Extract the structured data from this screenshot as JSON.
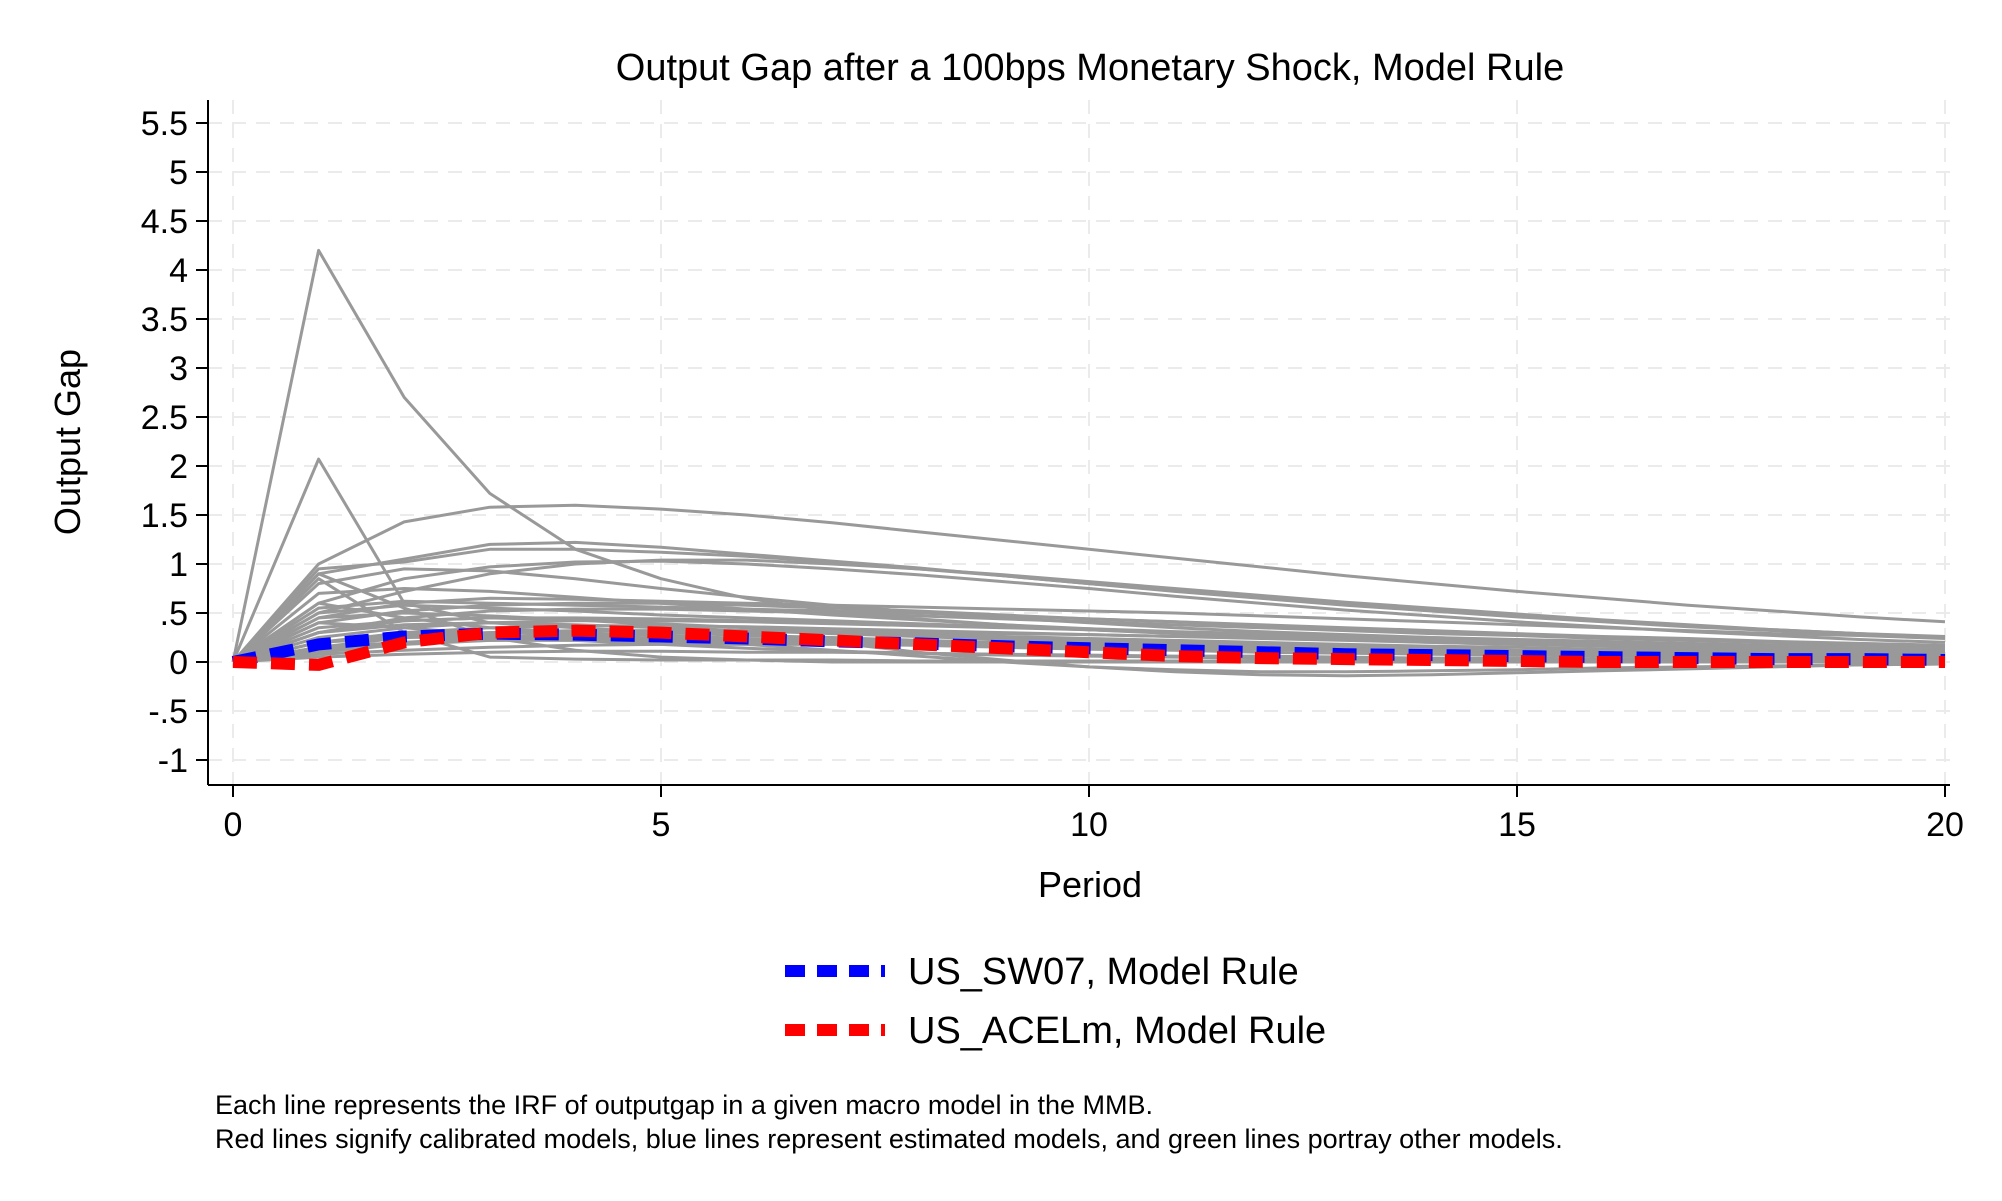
{
  "chart_data": {
    "type": "line",
    "title": "Output Gap after a 100bps Monetary Shock, Model Rule",
    "xlabel": "Period",
    "ylabel": "Output Gap",
    "xlim": [
      0,
      20
    ],
    "ylim": [
      -1,
      5.5
    ],
    "x_ticks": [
      0,
      5,
      10,
      15,
      20
    ],
    "x_tick_labels": [
      "0",
      "5",
      "10",
      "15",
      "20"
    ],
    "y_ticks": [
      -1,
      -0.5,
      0,
      0.5,
      1,
      1.5,
      2,
      2.5,
      3,
      3.5,
      4,
      4.5,
      5,
      5.5
    ],
    "y_tick_labels": [
      "-1",
      "-.5",
      "0",
      ".5",
      "1",
      "1.5",
      "2",
      "2.5",
      "3",
      "3.5",
      "4",
      "4.5",
      "5",
      "5.5"
    ],
    "grid": true,
    "legend_position": "bottom",
    "x": [
      0,
      1,
      2,
      3,
      4,
      5,
      6,
      7,
      8,
      9,
      10,
      11,
      12,
      13,
      14,
      15,
      16,
      17,
      18,
      19,
      20
    ],
    "background_color": "#999999",
    "background_series": [
      [
        0,
        4.2,
        2.7,
        1.72,
        1.15,
        0.85,
        0.65,
        0.52,
        0.44,
        0.38,
        0.33,
        0.29,
        0.26,
        0.23,
        0.2,
        0.18,
        0.16,
        0.14,
        0.12,
        0.11,
        0.1
      ],
      [
        0,
        2.07,
        0.6,
        0.4,
        0.35,
        0.3,
        0.27,
        0.25,
        0.22,
        0.2,
        0.18,
        0.16,
        0.14,
        0.12,
        0.11,
        0.1,
        0.09,
        0.08,
        0.07,
        0.06,
        0.05
      ],
      [
        0,
        1.0,
        1.43,
        1.58,
        1.6,
        1.56,
        1.5,
        1.42,
        1.33,
        1.24,
        1.15,
        1.06,
        0.97,
        0.88,
        0.8,
        0.72,
        0.65,
        0.58,
        0.52,
        0.46,
        0.41
      ],
      [
        0,
        0.9,
        1.05,
        1.2,
        1.22,
        1.17,
        1.1,
        1.03,
        0.96,
        0.88,
        0.8,
        0.72,
        0.65,
        0.58,
        0.52,
        0.46,
        0.41,
        0.36,
        0.32,
        0.28,
        0.25
      ],
      [
        0,
        0.95,
        1.02,
        1.15,
        1.15,
        1.12,
        1.08,
        1.02,
        0.95,
        0.88,
        0.8,
        0.73,
        0.66,
        0.59,
        0.53,
        0.47,
        0.42,
        0.37,
        0.33,
        0.29,
        0.26
      ],
      [
        0,
        0.8,
        0.95,
        0.93,
        0.85,
        0.75,
        0.66,
        0.58,
        0.51,
        0.45,
        0.4,
        0.35,
        0.31,
        0.28,
        0.25,
        0.22,
        0.2,
        0.18,
        0.16,
        0.14,
        0.13
      ],
      [
        0,
        0.5,
        0.72,
        0.9,
        1.0,
        1.04,
        1.04,
        1.0,
        0.95,
        0.89,
        0.82,
        0.75,
        0.68,
        0.61,
        0.55,
        0.49,
        0.43,
        0.38,
        0.33,
        0.29,
        0.25
      ],
      [
        0,
        0.6,
        0.85,
        0.97,
        1.02,
        1.03,
        1.0,
        0.95,
        0.89,
        0.82,
        0.75,
        0.67,
        0.6,
        0.53,
        0.47,
        0.41,
        0.36,
        0.31,
        0.27,
        0.23,
        0.2
      ],
      [
        0,
        0.9,
        0.55,
        0.25,
        0.12,
        0.05,
        0.02,
        0.0,
        0.0,
        0.0,
        0.0,
        0.0,
        0.0,
        0.0,
        0.0,
        0.0,
        0.0,
        0.0,
        0.0,
        0.0,
        0.0
      ],
      [
        0,
        0.85,
        0.3,
        0.05,
        0.03,
        0.02,
        0.02,
        0.02,
        0.01,
        0.01,
        0.01,
        0.01,
        0.01,
        0.01,
        0.01,
        0.01,
        0.01,
        0.01,
        0.01,
        0.01,
        0.01
      ],
      [
        0,
        0.7,
        0.75,
        0.72,
        0.66,
        0.6,
        0.54,
        0.48,
        0.43,
        0.38,
        0.34,
        0.3,
        0.27,
        0.24,
        0.21,
        0.19,
        0.17,
        0.15,
        0.13,
        0.12,
        0.11
      ],
      [
        0,
        0.55,
        0.62,
        0.6,
        0.58,
        0.56,
        0.54,
        0.52,
        0.5,
        0.47,
        0.44,
        0.41,
        0.38,
        0.35,
        0.32,
        0.29,
        0.26,
        0.24,
        0.21,
        0.19,
        0.17
      ],
      [
        0,
        0.4,
        0.52,
        0.58,
        0.6,
        0.6,
        0.58,
        0.55,
        0.52,
        0.48,
        0.44,
        0.41,
        0.37,
        0.34,
        0.31,
        0.28,
        0.25,
        0.22,
        0.2,
        0.18,
        0.16
      ],
      [
        0,
        0.5,
        0.58,
        0.55,
        0.52,
        0.48,
        0.45,
        0.42,
        0.39,
        0.36,
        0.33,
        0.3,
        0.27,
        0.25,
        0.22,
        0.2,
        0.18,
        0.16,
        0.15,
        0.13,
        0.12
      ],
      [
        0,
        0.3,
        0.45,
        0.52,
        0.54,
        0.54,
        0.52,
        0.5,
        0.47,
        0.44,
        0.41,
        0.38,
        0.35,
        0.32,
        0.29,
        0.27,
        0.24,
        0.22,
        0.2,
        0.18,
        0.16
      ],
      [
        0,
        0.45,
        0.5,
        0.47,
        0.43,
        0.39,
        0.35,
        0.31,
        0.28,
        0.25,
        0.22,
        0.2,
        0.18,
        0.16,
        0.14,
        0.12,
        0.11,
        0.1,
        0.09,
        0.08,
        0.07
      ],
      [
        0,
        0.35,
        0.42,
        0.45,
        0.45,
        0.44,
        0.42,
        0.4,
        0.38,
        0.36,
        0.34,
        0.31,
        0.29,
        0.27,
        0.25,
        0.23,
        0.21,
        0.19,
        0.17,
        0.16,
        0.14
      ],
      [
        0,
        0.25,
        0.35,
        0.4,
        0.42,
        0.42,
        0.41,
        0.39,
        0.37,
        0.35,
        0.33,
        0.3,
        0.28,
        0.26,
        0.24,
        0.22,
        0.2,
        0.18,
        0.16,
        0.15,
        0.13
      ],
      [
        0,
        0.2,
        0.3,
        0.35,
        0.37,
        0.37,
        0.36,
        0.34,
        0.32,
        0.3,
        0.28,
        0.26,
        0.24,
        0.22,
        0.2,
        0.18,
        0.16,
        0.15,
        0.13,
        0.12,
        0.11
      ],
      [
        0,
        0.3,
        0.38,
        0.4,
        0.38,
        0.35,
        0.32,
        0.29,
        0.26,
        0.23,
        0.2,
        0.18,
        0.16,
        0.14,
        0.12,
        0.11,
        0.1,
        0.09,
        0.08,
        0.07,
        0.06
      ],
      [
        0,
        0.15,
        0.25,
        0.3,
        0.32,
        0.32,
        0.31,
        0.3,
        0.28,
        0.26,
        0.24,
        0.22,
        0.2,
        0.18,
        0.16,
        0.15,
        0.13,
        0.12,
        0.11,
        0.1,
        0.09
      ],
      [
        0,
        0.4,
        0.35,
        0.28,
        0.22,
        0.18,
        0.14,
        0.11,
        0.09,
        0.07,
        0.06,
        0.05,
        0.04,
        0.03,
        0.03,
        0.02,
        0.02,
        0.02,
        0.01,
        0.01,
        0.01
      ],
      [
        0,
        0.1,
        0.18,
        0.22,
        0.24,
        0.24,
        0.23,
        0.22,
        0.2,
        0.19,
        0.17,
        0.16,
        0.14,
        0.13,
        0.12,
        0.11,
        0.1,
        0.09,
        0.08,
        0.07,
        0.06
      ],
      [
        0,
        0.2,
        0.25,
        0.26,
        0.25,
        0.23,
        0.21,
        0.19,
        0.17,
        0.15,
        0.13,
        0.12,
        0.1,
        0.09,
        0.08,
        0.07,
        0.06,
        0.05,
        0.05,
        0.04,
        0.04
      ],
      [
        0,
        0.08,
        0.12,
        0.15,
        0.17,
        0.18,
        0.18,
        0.18,
        0.17,
        0.16,
        0.15,
        0.14,
        0.13,
        0.12,
        0.11,
        0.1,
        0.09,
        0.08,
        0.07,
        0.07,
        0.06
      ],
      [
        0,
        0.05,
        0.08,
        0.1,
        0.11,
        0.11,
        0.1,
        0.1,
        0.09,
        0.08,
        0.07,
        0.06,
        0.06,
        0.05,
        0.04,
        0.04,
        0.03,
        0.03,
        0.03,
        0.02,
        0.02
      ],
      [
        0,
        0.3,
        0.42,
        0.45,
        0.43,
        0.38,
        0.3,
        0.2,
        0.1,
        0.02,
        -0.05,
        -0.1,
        -0.13,
        -0.14,
        -0.13,
        -0.11,
        -0.09,
        -0.07,
        -0.05,
        -0.03,
        -0.02
      ],
      [
        0,
        0.2,
        0.28,
        0.3,
        0.28,
        0.24,
        0.18,
        0.12,
        0.06,
        0.0,
        -0.05,
        -0.08,
        -0.1,
        -0.1,
        -0.09,
        -0.08,
        -0.06,
        -0.05,
        -0.04,
        -0.03,
        -0.02
      ],
      [
        0,
        0.12,
        0.2,
        0.25,
        0.28,
        0.3,
        0.31,
        0.31,
        0.3,
        0.29,
        0.28,
        0.26,
        0.25,
        0.23,
        0.22,
        0.2,
        0.19,
        0.17,
        0.16,
        0.15,
        0.14
      ],
      [
        0,
        0.6,
        0.45,
        0.35,
        0.3,
        0.27,
        0.24,
        0.22,
        0.2,
        0.18,
        0.16,
        0.14,
        0.13,
        0.12,
        0.11,
        0.1,
        0.09,
        0.08,
        0.07,
        0.07,
        0.06
      ],
      [
        0,
        0.15,
        0.2,
        0.22,
        0.22,
        0.21,
        0.2,
        0.19,
        0.18,
        0.17,
        0.16,
        0.15,
        0.14,
        0.13,
        0.12,
        0.11,
        0.1,
        0.09,
        0.08,
        0.08,
        0.07
      ],
      [
        0,
        0.45,
        0.6,
        0.65,
        0.64,
        0.62,
        0.6,
        0.58,
        0.56,
        0.54,
        0.52,
        0.5,
        0.47,
        0.44,
        0.41,
        0.38,
        0.35,
        0.32,
        0.29,
        0.27,
        0.24
      ]
    ],
    "series": [
      {
        "name": "US_SW07, Model Rule",
        "color": "#0000ff",
        "values": [
          0,
          0.18,
          0.26,
          0.29,
          0.28,
          0.26,
          0.24,
          0.21,
          0.19,
          0.16,
          0.14,
          0.12,
          0.1,
          0.08,
          0.07,
          0.06,
          0.05,
          0.04,
          0.03,
          0.03,
          0.02
        ]
      },
      {
        "name": "US_ACELm, Model Rule",
        "color": "#ff0000",
        "values": [
          0,
          -0.03,
          0.2,
          0.3,
          0.32,
          0.3,
          0.26,
          0.22,
          0.18,
          0.14,
          0.1,
          0.06,
          0.04,
          0.03,
          0.02,
          0.01,
          0.0,
          0.0,
          0.0,
          0.0,
          0.0
        ]
      }
    ]
  },
  "notes": [
    "Each line represents the IRF of outputgap in a given macro model in the MMB.",
    "Red lines signify calibrated models, blue lines represent estimated models, and green lines portray other models."
  ]
}
